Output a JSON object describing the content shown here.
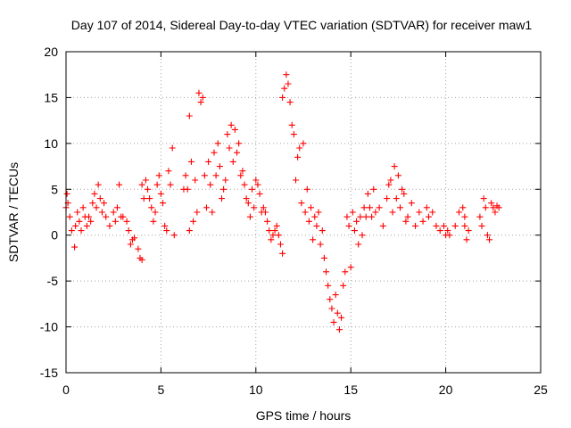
{
  "chart_data": {
    "type": "scatter",
    "title": "Day 107 of 2014, Sidereal Day-to-day VTEC variation (SDTVAR) for receiver maw1",
    "xlabel": "GPS time / hours",
    "ylabel": "SDTVAR / TECUs",
    "xlim": [
      0,
      25
    ],
    "ylim": [
      -15,
      20
    ],
    "x_ticks": [
      0,
      5,
      10,
      15,
      20,
      25
    ],
    "x_tick_labels": [
      "0",
      "5",
      "10",
      "15",
      "20",
      "25"
    ],
    "y_ticks": [
      -15,
      -10,
      -5,
      0,
      5,
      10,
      15,
      20
    ],
    "y_tick_labels": [
      "-15",
      "-10",
      "-5",
      "0",
      "5",
      "10",
      "15",
      "20"
    ],
    "grid": true,
    "marker": "+",
    "color": "#ff0000",
    "series": [
      {
        "name": "SDTVAR",
        "points": [
          [
            0.0,
            3.0
          ],
          [
            0.05,
            4.5
          ],
          [
            0.1,
            3.5
          ],
          [
            0.2,
            2.0
          ],
          [
            0.3,
            0.5
          ],
          [
            0.45,
            -1.3
          ],
          [
            0.5,
            1.0
          ],
          [
            0.6,
            2.5
          ],
          [
            0.7,
            1.5
          ],
          [
            0.8,
            0.5
          ],
          [
            0.9,
            3.0
          ],
          [
            1.0,
            2.0
          ],
          [
            1.1,
            1.0
          ],
          [
            1.2,
            2.0
          ],
          [
            1.3,
            1.5
          ],
          [
            1.4,
            3.5
          ],
          [
            1.5,
            4.5
          ],
          [
            1.6,
            3.0
          ],
          [
            1.7,
            5.5
          ],
          [
            1.8,
            4.0
          ],
          [
            1.9,
            2.5
          ],
          [
            2.0,
            3.5
          ],
          [
            2.1,
            2.0
          ],
          [
            2.3,
            1.0
          ],
          [
            2.5,
            2.5
          ],
          [
            2.6,
            1.5
          ],
          [
            2.7,
            3.0
          ],
          [
            2.8,
            5.5
          ],
          [
            2.9,
            2.0
          ],
          [
            3.0,
            2.0
          ],
          [
            3.2,
            1.5
          ],
          [
            3.3,
            0.5
          ],
          [
            3.4,
            -1.0
          ],
          [
            3.5,
            -0.5
          ],
          [
            3.6,
            -0.3
          ],
          [
            3.8,
            -1.5
          ],
          [
            3.9,
            -2.5
          ],
          [
            4.0,
            -2.7
          ],
          [
            4.0,
            5.5
          ],
          [
            4.1,
            4.0
          ],
          [
            4.2,
            6.0
          ],
          [
            4.3,
            5.0
          ],
          [
            4.4,
            4.0
          ],
          [
            4.5,
            3.0
          ],
          [
            4.6,
            1.5
          ],
          [
            4.7,
            2.5
          ],
          [
            4.8,
            5.5
          ],
          [
            4.9,
            6.5
          ],
          [
            5.0,
            4.5
          ],
          [
            5.1,
            3.5
          ],
          [
            5.2,
            1.0
          ],
          [
            5.3,
            0.5
          ],
          [
            5.4,
            7.0
          ],
          [
            5.5,
            5.5
          ],
          [
            5.6,
            9.5
          ],
          [
            5.7,
            0.0
          ],
          [
            6.2,
            5.0
          ],
          [
            6.3,
            6.5
          ],
          [
            6.4,
            5.0
          ],
          [
            6.5,
            13.0
          ],
          [
            6.6,
            8.0
          ],
          [
            6.5,
            0.5
          ],
          [
            6.7,
            1.5
          ],
          [
            6.8,
            6.0
          ],
          [
            6.9,
            2.5
          ],
          [
            7.0,
            15.5
          ],
          [
            7.1,
            14.5
          ],
          [
            7.2,
            15.0
          ],
          [
            7.3,
            6.5
          ],
          [
            7.4,
            3.0
          ],
          [
            7.5,
            8.0
          ],
          [
            7.6,
            5.5
          ],
          [
            7.7,
            2.5
          ],
          [
            7.8,
            9.0
          ],
          [
            7.9,
            6.5
          ],
          [
            8.0,
            10.0
          ],
          [
            8.1,
            7.5
          ],
          [
            8.2,
            4.0
          ],
          [
            8.3,
            5.0
          ],
          [
            8.4,
            6.0
          ],
          [
            8.5,
            11.0
          ],
          [
            8.6,
            9.5
          ],
          [
            8.7,
            12.0
          ],
          [
            8.8,
            8.0
          ],
          [
            8.9,
            11.5
          ],
          [
            9.0,
            9.0
          ],
          [
            9.1,
            10.0
          ],
          [
            9.2,
            6.5
          ],
          [
            9.3,
            7.0
          ],
          [
            9.4,
            5.5
          ],
          [
            9.5,
            4.0
          ],
          [
            9.6,
            3.5
          ],
          [
            9.7,
            2.0
          ],
          [
            9.8,
            5.0
          ],
          [
            9.9,
            3.0
          ],
          [
            10.0,
            6.0
          ],
          [
            10.1,
            5.5
          ],
          [
            10.2,
            4.5
          ],
          [
            10.3,
            2.5
          ],
          [
            10.4,
            3.0
          ],
          [
            10.5,
            2.5
          ],
          [
            10.6,
            1.5
          ],
          [
            10.7,
            0.5
          ],
          [
            10.8,
            -0.5
          ],
          [
            10.9,
            0.0
          ],
          [
            11.0,
            0.5
          ],
          [
            11.1,
            1.0
          ],
          [
            11.2,
            0.0
          ],
          [
            11.3,
            -1.0
          ],
          [
            11.4,
            -2.0
          ],
          [
            11.4,
            15.0
          ],
          [
            11.5,
            16.0
          ],
          [
            11.6,
            17.5
          ],
          [
            11.7,
            16.5
          ],
          [
            11.8,
            14.5
          ],
          [
            11.9,
            12.0
          ],
          [
            12.0,
            11.0
          ],
          [
            12.1,
            6.0
          ],
          [
            12.2,
            8.5
          ],
          [
            12.3,
            9.5
          ],
          [
            12.4,
            3.5
          ],
          [
            12.5,
            10.0
          ],
          [
            12.6,
            2.5
          ],
          [
            12.7,
            5.0
          ],
          [
            12.8,
            1.5
          ],
          [
            12.9,
            3.0
          ],
          [
            13.0,
            -0.5
          ],
          [
            13.1,
            2.0
          ],
          [
            13.2,
            1.0
          ],
          [
            13.3,
            2.5
          ],
          [
            13.4,
            -1.0
          ],
          [
            13.5,
            0.5
          ],
          [
            13.6,
            -2.5
          ],
          [
            13.7,
            -4.0
          ],
          [
            13.8,
            -5.5
          ],
          [
            13.9,
            -7.0
          ],
          [
            14.0,
            -8.0
          ],
          [
            14.1,
            -9.5
          ],
          [
            14.2,
            -6.5
          ],
          [
            14.3,
            -8.5
          ],
          [
            14.4,
            -10.3
          ],
          [
            14.5,
            -9.0
          ],
          [
            14.6,
            -5.5
          ],
          [
            14.7,
            -4.0
          ],
          [
            14.8,
            2.0
          ],
          [
            14.9,
            1.0
          ],
          [
            15.0,
            -3.5
          ],
          [
            15.1,
            2.5
          ],
          [
            15.2,
            0.5
          ],
          [
            15.3,
            1.5
          ],
          [
            15.4,
            -1.0
          ],
          [
            15.5,
            2.0
          ],
          [
            15.6,
            0.0
          ],
          [
            15.7,
            3.0
          ],
          [
            15.8,
            2.0
          ],
          [
            15.9,
            4.5
          ],
          [
            16.0,
            3.0
          ],
          [
            16.1,
            2.0
          ],
          [
            16.2,
            5.0
          ],
          [
            16.3,
            2.5
          ],
          [
            16.5,
            3.0
          ],
          [
            16.7,
            1.0
          ],
          [
            16.9,
            4.0
          ],
          [
            17.0,
            5.5
          ],
          [
            17.1,
            6.0
          ],
          [
            17.2,
            2.5
          ],
          [
            17.3,
            7.5
          ],
          [
            17.4,
            4.0
          ],
          [
            17.5,
            6.5
          ],
          [
            17.6,
            3.0
          ],
          [
            17.7,
            5.0
          ],
          [
            17.8,
            4.5
          ],
          [
            17.9,
            1.5
          ],
          [
            18.0,
            2.0
          ],
          [
            18.2,
            3.5
          ],
          [
            18.4,
            1.0
          ],
          [
            18.6,
            2.5
          ],
          [
            18.8,
            1.5
          ],
          [
            19.0,
            3.0
          ],
          [
            19.1,
            2.0
          ],
          [
            19.3,
            2.5
          ],
          [
            19.5,
            1.0
          ],
          [
            19.7,
            0.5
          ],
          [
            19.9,
            1.0
          ],
          [
            20.0,
            0.0
          ],
          [
            20.1,
            0.5
          ],
          [
            20.2,
            0.0
          ],
          [
            20.5,
            1.0
          ],
          [
            20.7,
            2.5
          ],
          [
            20.9,
            3.0
          ],
          [
            21.0,
            2.0
          ],
          [
            21.1,
            -0.5
          ],
          [
            21.2,
            0.5
          ],
          [
            21.0,
            1.0
          ],
          [
            21.8,
            2.0
          ],
          [
            21.9,
            1.0
          ],
          [
            22.0,
            4.0
          ],
          [
            22.1,
            3.0
          ],
          [
            22.2,
            0.0
          ],
          [
            22.3,
            -0.5
          ],
          [
            22.4,
            3.5
          ],
          [
            22.5,
            3.0
          ],
          [
            22.6,
            2.5
          ],
          [
            22.7,
            3.2
          ],
          [
            22.8,
            3.0
          ]
        ]
      }
    ]
  }
}
